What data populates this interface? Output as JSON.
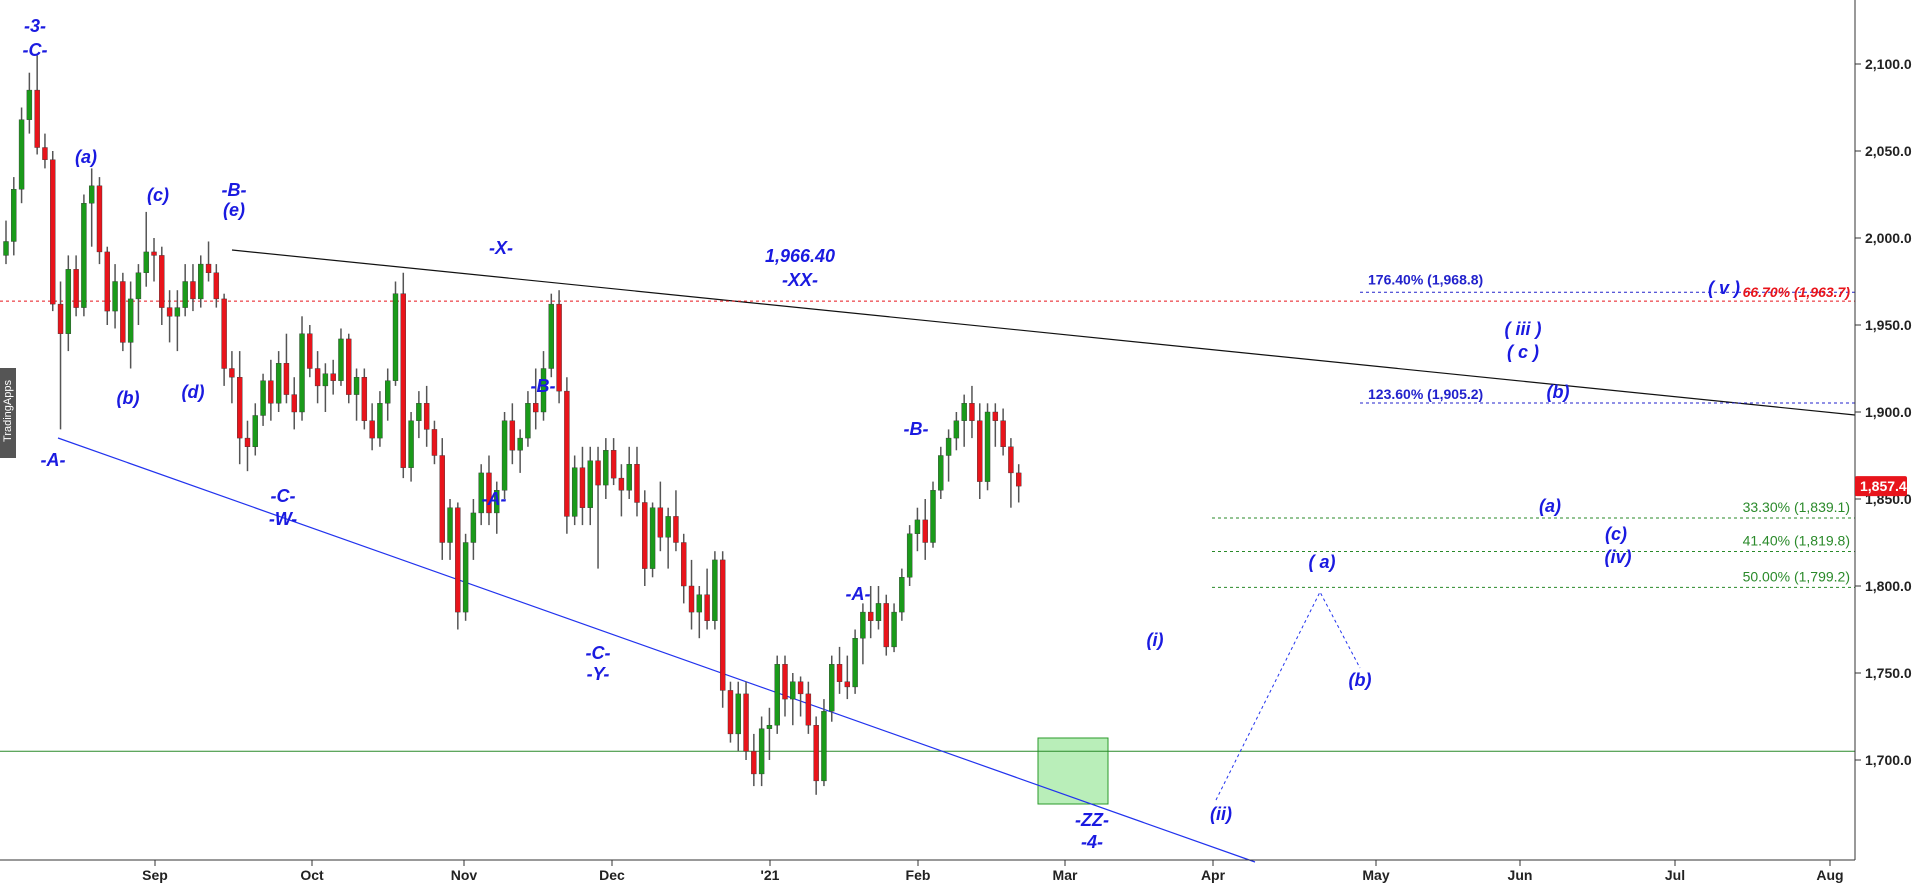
{
  "chart_data": {
    "type": "candlestick",
    "instrument_note": "Daily candlestick chart with Elliott wave annotations",
    "watermark": "TradingApps",
    "colors": {
      "up_candle": "#1a9a1a",
      "down_candle": "#e8141b",
      "wick": "#555555",
      "wave_label": "#1a1ae0",
      "fib_blue": "#2222cc",
      "fib_green": "#2a8a2a",
      "fib_red": "#e8141b",
      "trendline_upper": "#111111",
      "trendline_lower": "#2233ee",
      "support_line": "#2a8a2a",
      "box_fill": "#7fe07f",
      "price_badge": "#e8141b"
    },
    "x_axis": {
      "labels": [
        "Sep",
        "Oct",
        "Nov",
        "Dec",
        "'21",
        "Feb",
        "Mar",
        "Apr",
        "May",
        "Jun",
        "Jul",
        "Aug"
      ]
    },
    "y_axis": {
      "range": [
        1650,
        2125
      ],
      "ticks": [
        "2,100.0",
        "2,050.0",
        "2,000.0",
        "1,950.0",
        "1,900.0",
        "1,850.0",
        "1,800.0",
        "1,750.0",
        "1,700.0"
      ],
      "tick_values": [
        2100,
        2050,
        2000,
        1950,
        1900,
        1850,
        1800,
        1750,
        1700
      ],
      "last_price_label": "1,857.4",
      "last_price": 1857.4
    },
    "candles": [
      [
        1990,
        2010,
        1985,
        1998
      ],
      [
        1998,
        2035,
        1990,
        2028
      ],
      [
        2028,
        2075,
        2020,
        2068
      ],
      [
        2068,
        2095,
        2060,
        2085
      ],
      [
        2085,
        2105,
        2048,
        2052
      ],
      [
        2052,
        2060,
        2040,
        2045
      ],
      [
        2045,
        2050,
        1958,
        1962
      ],
      [
        1962,
        1975,
        1890,
        1945
      ],
      [
        1945,
        1990,
        1935,
        1982
      ],
      [
        1982,
        1990,
        1955,
        1960
      ],
      [
        1960,
        2025,
        1955,
        2020
      ],
      [
        2020,
        2040,
        1995,
        2030
      ],
      [
        2030,
        2035,
        1985,
        1992
      ],
      [
        1992,
        1995,
        1950,
        1958
      ],
      [
        1958,
        1985,
        1948,
        1975
      ],
      [
        1975,
        1980,
        1935,
        1940
      ],
      [
        1940,
        1975,
        1925,
        1965
      ],
      [
        1965,
        1985,
        1950,
        1980
      ],
      [
        1980,
        2015,
        1972,
        1992
      ],
      [
        1992,
        2000,
        1975,
        1990
      ],
      [
        1990,
        1995,
        1950,
        1960
      ],
      [
        1960,
        1970,
        1940,
        1955
      ],
      [
        1955,
        1970,
        1935,
        1960
      ],
      [
        1960,
        1985,
        1955,
        1975
      ],
      [
        1975,
        1985,
        1958,
        1965
      ],
      [
        1965,
        1990,
        1960,
        1985
      ],
      [
        1985,
        1998,
        1975,
        1980
      ],
      [
        1980,
        1985,
        1960,
        1965
      ],
      [
        1965,
        1968,
        1915,
        1925
      ],
      [
        1925,
        1935,
        1905,
        1920
      ],
      [
        1920,
        1935,
        1870,
        1885
      ],
      [
        1885,
        1895,
        1866,
        1880
      ],
      [
        1880,
        1905,
        1875,
        1898
      ],
      [
        1898,
        1922,
        1892,
        1918
      ],
      [
        1918,
        1930,
        1895,
        1905
      ],
      [
        1905,
        1935,
        1900,
        1928
      ],
      [
        1928,
        1945,
        1905,
        1910
      ],
      [
        1910,
        1920,
        1890,
        1900
      ],
      [
        1900,
        1955,
        1895,
        1945
      ],
      [
        1945,
        1950,
        1920,
        1925
      ],
      [
        1925,
        1935,
        1905,
        1915
      ],
      [
        1915,
        1928,
        1900,
        1922
      ],
      [
        1922,
        1930,
        1910,
        1918
      ],
      [
        1918,
        1948,
        1915,
        1942
      ],
      [
        1942,
        1945,
        1905,
        1910
      ],
      [
        1910,
        1925,
        1895,
        1920
      ],
      [
        1920,
        1925,
        1890,
        1895
      ],
      [
        1895,
        1905,
        1878,
        1885
      ],
      [
        1885,
        1912,
        1880,
        1905
      ],
      [
        1905,
        1925,
        1895,
        1918
      ],
      [
        1918,
        1975,
        1915,
        1968
      ],
      [
        1968,
        1980,
        1862,
        1868
      ],
      [
        1868,
        1900,
        1860,
        1895
      ],
      [
        1895,
        1912,
        1885,
        1905
      ],
      [
        1905,
        1915,
        1880,
        1890
      ],
      [
        1890,
        1895,
        1870,
        1875
      ],
      [
        1875,
        1885,
        1815,
        1825
      ],
      [
        1825,
        1850,
        1815,
        1845
      ],
      [
        1845,
        1848,
        1775,
        1785
      ],
      [
        1785,
        1830,
        1780,
        1825
      ],
      [
        1825,
        1850,
        1815,
        1842
      ],
      [
        1842,
        1870,
        1835,
        1865
      ],
      [
        1865,
        1875,
        1835,
        1842
      ],
      [
        1842,
        1860,
        1830,
        1855
      ],
      [
        1855,
        1900,
        1850,
        1895
      ],
      [
        1895,
        1905,
        1870,
        1878
      ],
      [
        1878,
        1890,
        1865,
        1885
      ],
      [
        1885,
        1912,
        1880,
        1905
      ],
      [
        1905,
        1925,
        1890,
        1900
      ],
      [
        1900,
        1935,
        1895,
        1925
      ],
      [
        1925,
        1968,
        1920,
        1962
      ],
      [
        1962,
        1970,
        1905,
        1912
      ],
      [
        1912,
        1920,
        1830,
        1840
      ],
      [
        1840,
        1875,
        1835,
        1868
      ],
      [
        1868,
        1880,
        1835,
        1845
      ],
      [
        1845,
        1880,
        1835,
        1872
      ],
      [
        1872,
        1880,
        1810,
        1858
      ],
      [
        1858,
        1885,
        1850,
        1878
      ],
      [
        1878,
        1885,
        1858,
        1862
      ],
      [
        1862,
        1870,
        1840,
        1855
      ],
      [
        1855,
        1880,
        1850,
        1870
      ],
      [
        1870,
        1880,
        1840,
        1848
      ],
      [
        1848,
        1855,
        1800,
        1810
      ],
      [
        1810,
        1848,
        1805,
        1845
      ],
      [
        1845,
        1860,
        1820,
        1828
      ],
      [
        1828,
        1845,
        1810,
        1840
      ],
      [
        1840,
        1855,
        1820,
        1825
      ],
      [
        1825,
        1830,
        1790,
        1800
      ],
      [
        1800,
        1815,
        1775,
        1785
      ],
      [
        1785,
        1800,
        1770,
        1795
      ],
      [
        1795,
        1810,
        1775,
        1780
      ],
      [
        1780,
        1820,
        1775,
        1815
      ],
      [
        1815,
        1820,
        1730,
        1740
      ],
      [
        1740,
        1745,
        1710,
        1715
      ],
      [
        1715,
        1745,
        1705,
        1738
      ],
      [
        1738,
        1745,
        1700,
        1705
      ],
      [
        1705,
        1715,
        1685,
        1692
      ],
      [
        1692,
        1725,
        1685,
        1718
      ],
      [
        1718,
        1730,
        1700,
        1720
      ],
      [
        1720,
        1760,
        1715,
        1755
      ],
      [
        1755,
        1760,
        1725,
        1735
      ],
      [
        1735,
        1750,
        1720,
        1745
      ],
      [
        1745,
        1748,
        1725,
        1738
      ],
      [
        1738,
        1745,
        1715,
        1720
      ],
      [
        1720,
        1725,
        1680,
        1688
      ],
      [
        1688,
        1735,
        1685,
        1728
      ],
      [
        1728,
        1760,
        1722,
        1755
      ],
      [
        1755,
        1765,
        1738,
        1745
      ],
      [
        1745,
        1760,
        1735,
        1742
      ],
      [
        1742,
        1775,
        1738,
        1770
      ],
      [
        1770,
        1790,
        1755,
        1785
      ],
      [
        1785,
        1800,
        1770,
        1780
      ],
      [
        1780,
        1800,
        1775,
        1790
      ],
      [
        1790,
        1795,
        1760,
        1765
      ],
      [
        1765,
        1790,
        1762,
        1785
      ],
      [
        1785,
        1810,
        1780,
        1805
      ],
      [
        1805,
        1835,
        1800,
        1830
      ],
      [
        1830,
        1845,
        1820,
        1838
      ],
      [
        1838,
        1850,
        1815,
        1825
      ],
      [
        1825,
        1860,
        1822,
        1855
      ],
      [
        1855,
        1880,
        1850,
        1875
      ],
      [
        1875,
        1890,
        1860,
        1885
      ],
      [
        1885,
        1900,
        1878,
        1895
      ],
      [
        1895,
        1910,
        1880,
        1905
      ],
      [
        1905,
        1915,
        1885,
        1895
      ],
      [
        1895,
        1905,
        1850,
        1860
      ],
      [
        1860,
        1905,
        1855,
        1900
      ],
      [
        1900,
        1905,
        1880,
        1895
      ],
      [
        1895,
        1902,
        1875,
        1880
      ],
      [
        1880,
        1885,
        1845,
        1865
      ],
      [
        1865,
        1870,
        1848,
        1857.4
      ]
    ],
    "trendlines": [
      {
        "name": "upper-wedge",
        "from": [
          20,
          1998
        ],
        "to": [
          142,
          1905
        ]
      },
      {
        "name": "lower-wedge",
        "from": [
          6,
          1890
        ],
        "to": [
          155,
          1570
        ]
      }
    ],
    "horizontal_levels": [
      {
        "name": "support-1700",
        "value": 1705,
        "style": "solid"
      }
    ],
    "fib_levels": [
      {
        "label": "176.40% (1,968.8)",
        "value": 1968.8,
        "color": "blue"
      },
      {
        "label": "66.70% (1,963.7)",
        "value": 1963.7,
        "color": "red"
      },
      {
        "label": "123.60% (1,905.2)",
        "value": 1905.2,
        "color": "blue"
      },
      {
        "label": "33.30% (1,839.1)",
        "value": 1839.1,
        "color": "green"
      },
      {
        "label": "41.40% (1,819.8)",
        "value": 1819.8,
        "color": "green"
      },
      {
        "label": "50.00% (1,799.2)",
        "value": 1799.2,
        "color": "green"
      }
    ],
    "annotations": [
      "-3-",
      "-C-",
      "(a)",
      "(b)",
      "(c)",
      "(d)",
      "-B-",
      "(e)",
      "-A-",
      "-C-",
      "-W-",
      "-X-",
      "-A-",
      "-B-",
      "1,966.40",
      "-XX-",
      "-C-",
      "-Y-",
      "-B-",
      "-A-",
      "(i)",
      "-ZZ-",
      "-4-",
      "(ii)",
      "( a)",
      "(b)",
      "( iii )",
      "( c )",
      "(b)",
      "(a)",
      "(c)",
      "(iv)",
      "( v )"
    ]
  }
}
